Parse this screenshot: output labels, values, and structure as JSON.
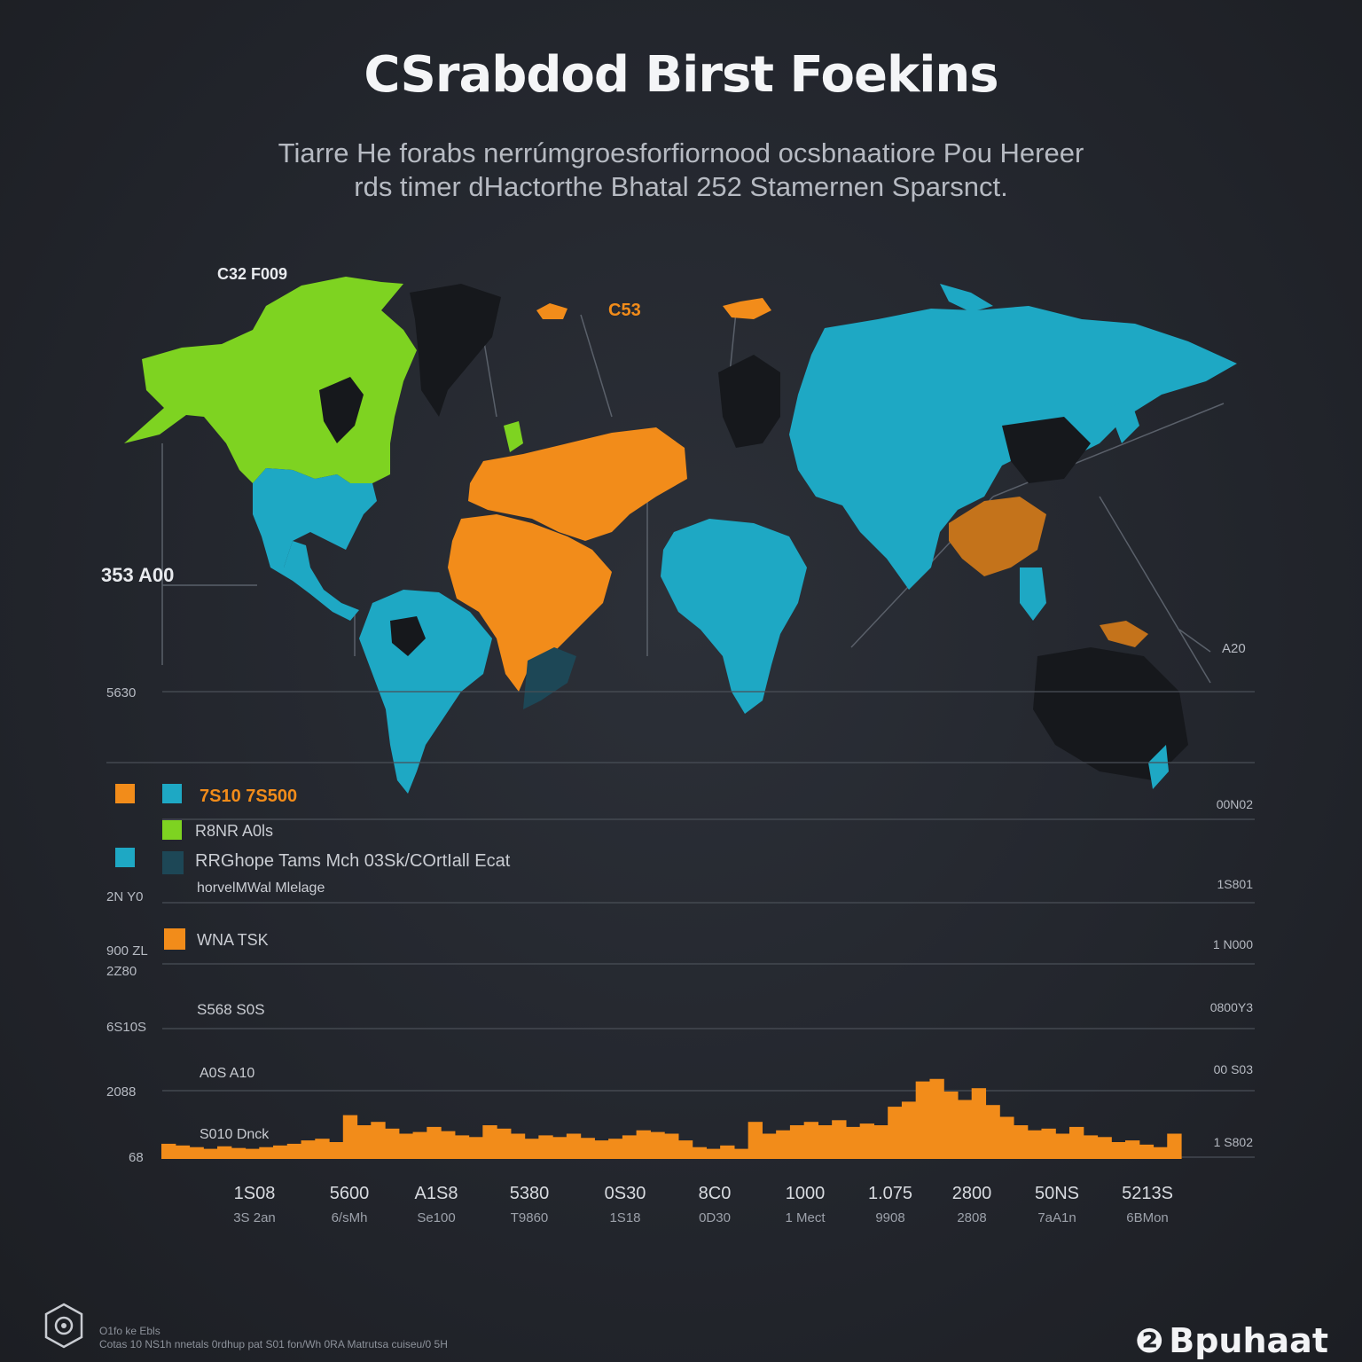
{
  "header": {
    "title": "CSrabdod Birst Foekins",
    "subtitle_line1": "Tiarre He forabs nerrúmgroesforfiornood ocsbnaatiore Pou Hereer",
    "subtitle_line2": "rds timer dHactorthe Bhatal 252 Stamernen Sparsnct."
  },
  "map": {
    "region_labels": [
      "C32 F009",
      "C53",
      "353 A00",
      "A20"
    ],
    "region_colors": {
      "green": "#7ed321",
      "blue": "#1ea8c4",
      "orange": "#f28c1a",
      "dark": "#16181c"
    }
  },
  "left_axis_labels": [
    "5630",
    "2N Y0",
    "900 ZL",
    "2Z80",
    "6S10S",
    "2088",
    "68"
  ],
  "right_axis_labels": [
    "00N02",
    "1S801",
    "1 N000",
    "0800Y3",
    "00 S03",
    "1 S802"
  ],
  "legend": {
    "items": [
      {
        "label": "7S10 7S500",
        "color": "#f28c1a",
        "text_color": "#f28c1a"
      },
      {
        "label": "R8NR A0ls",
        "color": "#7ed321",
        "text_color": "#c9ccd2"
      },
      {
        "label": "RRGhope Tams Mch 03Sk/COrtIall Ecat",
        "color": "#1d4756",
        "text_color": "#c9ccd2"
      },
      {
        "label": "horvelMWal Mlelage",
        "color": null,
        "text_color": "#c9ccd2"
      },
      {
        "label": "WNA TSK",
        "color": "#f28c1a",
        "text_color": "#c9ccd2"
      }
    ],
    "inline_labels": [
      "S568 S0S",
      "A0S A10",
      "S010 Dnck"
    ]
  },
  "chart_data": {
    "type": "bar",
    "title": "",
    "series": [
      {
        "values": [
          18,
          16,
          14,
          12,
          15,
          13,
          12,
          14,
          16,
          18,
          22,
          24,
          20,
          52,
          40,
          44,
          36,
          30,
          32,
          38,
          33,
          28,
          26,
          40,
          36,
          30,
          24,
          28,
          26,
          30,
          25,
          22,
          24,
          28,
          34,
          32,
          30,
          22,
          14,
          12,
          16,
          12,
          44,
          30,
          34,
          40,
          44,
          40,
          46,
          38,
          42,
          40,
          62,
          68,
          92,
          95,
          80,
          70,
          84,
          64,
          50,
          40,
          34,
          36,
          30,
          38,
          28,
          26,
          20,
          22,
          17,
          14,
          30
        ]
      }
    ],
    "x_tick_labels": [
      "1S08",
      "5600",
      "A1S8",
      "5380",
      "0S30",
      "8C0",
      "1000",
      "1.075",
      "2800",
      "50NS",
      "5213S"
    ],
    "x_tick_sublabels": [
      "3S 2an",
      "6/sMh",
      "Se100",
      "T9860",
      "1S18",
      "0D30",
      "1 Mect",
      "9908",
      "2808",
      "7aA1n",
      "6BMon"
    ],
    "color": "#f28c1a"
  },
  "footer": {
    "line1": "O1fo ke Ebls",
    "line2": "Cotas 10 NS1h nnetals 0rdhup pat S01 fon/Wh 0RA Matrutsa cuiseu/0 5H",
    "brand": "Bpuhaat"
  }
}
